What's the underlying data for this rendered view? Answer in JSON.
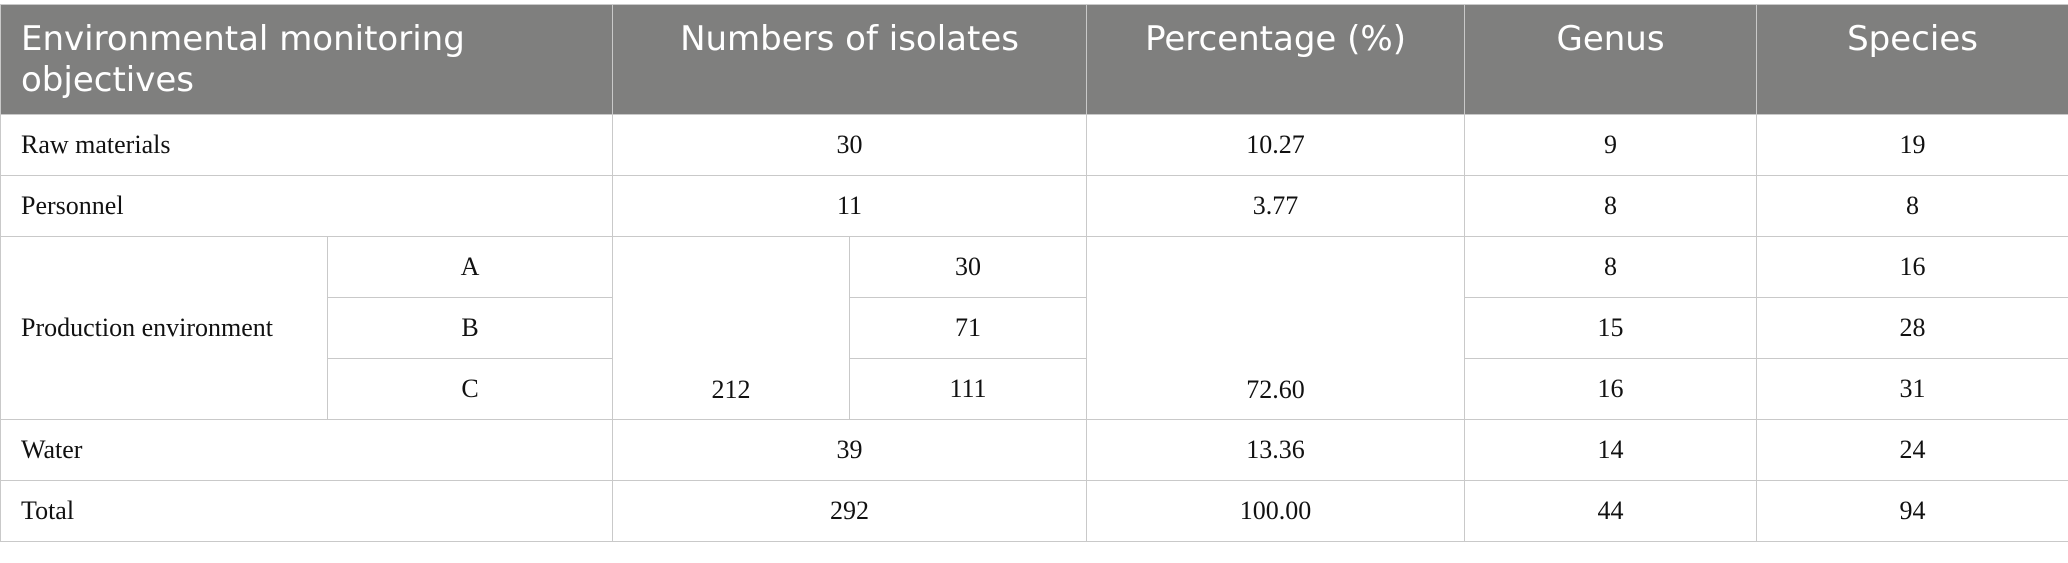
{
  "table": {
    "headers": {
      "objectives": "Environmental monitoring objectives",
      "isolates": "Numbers of isolates",
      "percentage": "Percentage (%)",
      "genus": "Genus",
      "species": "Species"
    },
    "rows": {
      "raw": {
        "label": "Raw materials",
        "isolates": "30",
        "percentage": "10.27",
        "genus": "9",
        "species": "19"
      },
      "personnel": {
        "label": "Personnel",
        "isolates": "11",
        "percentage": "3.77",
        "genus": "8",
        "species": "8"
      },
      "production": {
        "label": "Production environment",
        "isolates_total": "212",
        "percentage": "72.60",
        "sub": [
          {
            "label": "A",
            "isolates": "30",
            "genus": "8",
            "species": "16"
          },
          {
            "label": "B",
            "isolates": "71",
            "genus": "15",
            "species": "28"
          },
          {
            "label": "C",
            "isolates": "111",
            "genus": "16",
            "species": "31"
          }
        ]
      },
      "water": {
        "label": "Water",
        "isolates": "39",
        "percentage": "13.36",
        "genus": "14",
        "species": "24"
      },
      "total": {
        "label": "Total",
        "isolates": "292",
        "percentage": "100.00",
        "genus": "44",
        "species": "94"
      }
    }
  }
}
